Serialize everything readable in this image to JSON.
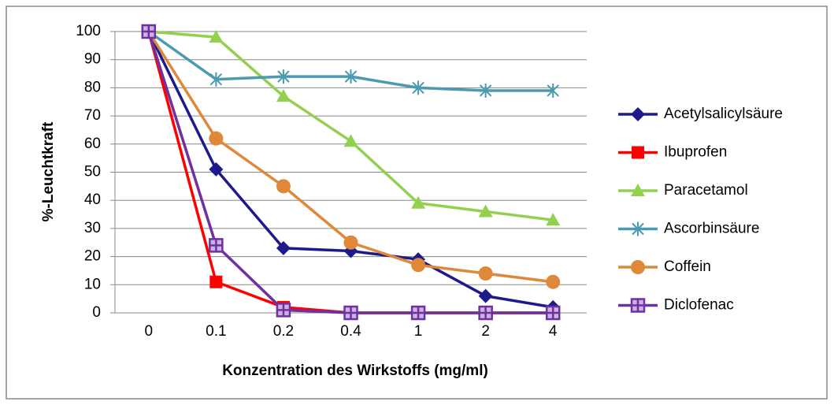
{
  "chart_data": {
    "type": "line",
    "x_label": "Konzentration des Wirkstoffs (mg/ml)",
    "y_label": "%-Leuchtkraft",
    "categories": [
      "0",
      "0.1",
      "0.2",
      "0.4",
      "1",
      "2",
      "4"
    ],
    "series": [
      {
        "name": "Acetylsalicylsäure",
        "color": "#1f1a8c",
        "marker": "diamond",
        "values": [
          100,
          51,
          23,
          22,
          19,
          6,
          2
        ]
      },
      {
        "name": "Ibuprofen",
        "color": "#ff0000",
        "marker": "square",
        "values": [
          100,
          11,
          2,
          0,
          0,
          0,
          0
        ]
      },
      {
        "name": "Paracetamol",
        "color": "#92d050",
        "marker": "triangle",
        "values": [
          100,
          98,
          77,
          61,
          39,
          36,
          33
        ]
      },
      {
        "name": "Ascorbinsäure",
        "color": "#4a9bb0",
        "marker": "star",
        "values": [
          100,
          83,
          84,
          84,
          80,
          79,
          79
        ]
      },
      {
        "name": "Coffein",
        "color": "#e0883a",
        "marker": "circle",
        "values": [
          100,
          62,
          45,
          25,
          17,
          14,
          11
        ]
      },
      {
        "name": "Diclofenac",
        "color": "#7030a0",
        "marker": "squareplus",
        "values": [
          100,
          24,
          1,
          0,
          0,
          0,
          0
        ]
      }
    ],
    "ylim": [
      0,
      100
    ],
    "yticks": [
      0,
      10,
      20,
      30,
      40,
      50,
      60,
      70,
      80,
      90,
      100
    ],
    "grid": true,
    "legend": "right"
  }
}
